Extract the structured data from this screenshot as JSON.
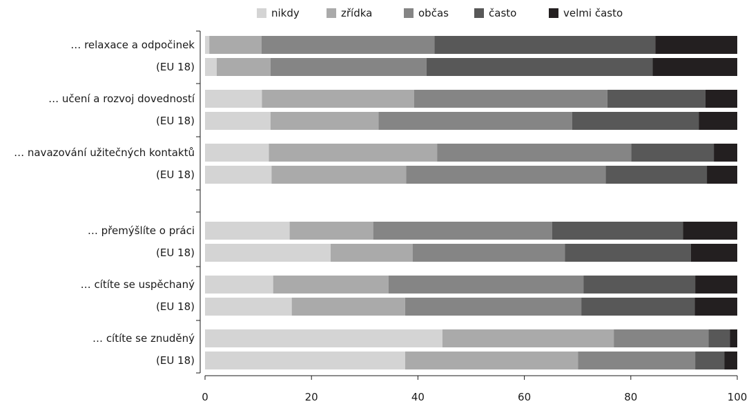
{
  "chart_data": {
    "type": "bar",
    "orientation": "horizontal",
    "stacked": true,
    "xlim": [
      0,
      100
    ],
    "x_ticks": [
      0,
      20,
      40,
      60,
      80,
      100
    ],
    "legend_position": "top",
    "grid": false,
    "categories": [
      "… relaxace a odpočinek",
      "(EU 18)",
      "… učení a rozvoj dovedností",
      "(EU 18)",
      "… navazování užitečných kontaktů",
      "(EU 18)",
      "… přemýšlíte o práci",
      "(EU 18)",
      "… cítíte se uspěchaný",
      "(EU 18)",
      "… cítíte se znuděný",
      "(EU 18)"
    ],
    "series": [
      {
        "name": "nikdy",
        "color": "#d4d4d4",
        "values": [
          0.8,
          2.2,
          10.7,
          12.3,
          12.0,
          12.5,
          15.9,
          23.6,
          12.8,
          16.3,
          44.6,
          37.6
        ]
      },
      {
        "name": "zřídka",
        "color": "#aaaaaa",
        "values": [
          9.8,
          10.1,
          28.6,
          20.3,
          31.6,
          25.3,
          15.7,
          15.4,
          21.7,
          21.3,
          32.2,
          32.5
        ]
      },
      {
        "name": "občas",
        "color": "#858585",
        "values": [
          32.5,
          29.3,
          36.3,
          36.4,
          36.5,
          37.5,
          33.6,
          28.6,
          36.6,
          33.1,
          17.8,
          22.0
        ]
      },
      {
        "name": "často",
        "color": "#585858",
        "values": [
          41.5,
          42.5,
          18.4,
          23.8,
          15.5,
          19.0,
          24.6,
          23.7,
          21.0,
          21.3,
          4.0,
          5.5
        ]
      },
      {
        "name": "velmi často",
        "color": "#231f20",
        "values": [
          15.4,
          15.9,
          6.0,
          7.2,
          4.4,
          5.7,
          10.2,
          8.7,
          7.9,
          8.0,
          1.4,
          2.4
        ]
      }
    ]
  }
}
